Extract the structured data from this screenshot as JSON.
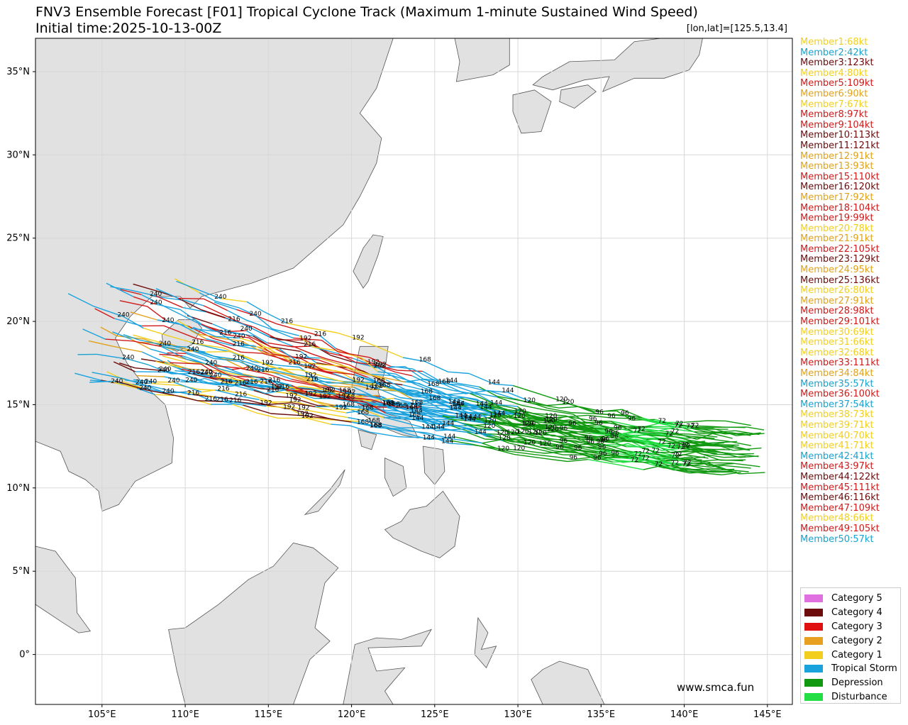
{
  "title": "FNV3 Ensemble Forecast [F01] Tropical Cyclone Track (Maximum 1-minute Sustained Wind Speed)",
  "subtitle": "Initial time:2025-10-13-00Z",
  "point_label": "[lon,lat]=[125.5,13.4]",
  "credit": "www.smca.fun",
  "map": {
    "lon_range": [
      101,
      146.5
    ],
    "lat_range": [
      -3,
      37
    ],
    "lon_ticks": [
      105,
      110,
      115,
      120,
      125,
      130,
      135,
      140,
      145
    ],
    "lat_ticks": [
      0,
      5,
      10,
      15,
      20,
      25,
      30,
      35
    ],
    "lon_tick_labels": [
      "105°E",
      "110°E",
      "115°E",
      "120°E",
      "125°E",
      "130°E",
      "135°E",
      "140°E",
      "145°E"
    ],
    "lat_tick_labels": [
      "0°",
      "5°N",
      "10°N",
      "15°N",
      "20°N",
      "25°N",
      "30°N",
      "35°N"
    ],
    "grid": true,
    "land_color": "#e1e1e1",
    "coast_color": "#555555"
  },
  "members": [
    {
      "label": "Member1:68kt",
      "color": "#f2cf1e"
    },
    {
      "label": "Member2:42kt",
      "color": "#1aa2cf"
    },
    {
      "label": "Member3:123kt",
      "color": "#6b0b0b"
    },
    {
      "label": "Member4:80kt",
      "color": "#f2cf1e"
    },
    {
      "label": "Member5:109kt",
      "color": "#d01a1a"
    },
    {
      "label": "Member6:90kt",
      "color": "#e0a21a"
    },
    {
      "label": "Member7:67kt",
      "color": "#f2cf1e"
    },
    {
      "label": "Member8:97kt",
      "color": "#d01a1a"
    },
    {
      "label": "Member9:104kt",
      "color": "#d01a1a"
    },
    {
      "label": "Member10:113kt",
      "color": "#6b0b0b"
    },
    {
      "label": "Member11:121kt",
      "color": "#6b0b0b"
    },
    {
      "label": "Member12:91kt",
      "color": "#e0a21a"
    },
    {
      "label": "Member13:93kt",
      "color": "#e0a21a"
    },
    {
      "label": "Member15:110kt",
      "color": "#d01a1a"
    },
    {
      "label": "Member16:120kt",
      "color": "#6b0b0b"
    },
    {
      "label": "Member17:92kt",
      "color": "#e0a21a"
    },
    {
      "label": "Member18:104kt",
      "color": "#d01a1a"
    },
    {
      "label": "Member19:99kt",
      "color": "#d01a1a"
    },
    {
      "label": "Member20:78kt",
      "color": "#f2cf1e"
    },
    {
      "label": "Member21:91kt",
      "color": "#e0a21a"
    },
    {
      "label": "Member22:105kt",
      "color": "#d01a1a"
    },
    {
      "label": "Member23:129kt",
      "color": "#6b0b0b"
    },
    {
      "label": "Member24:95kt",
      "color": "#e0a21a"
    },
    {
      "label": "Member25:136kt",
      "color": "#6b0b0b"
    },
    {
      "label": "Member26:80kt",
      "color": "#f2cf1e"
    },
    {
      "label": "Member27:91kt",
      "color": "#e0a21a"
    },
    {
      "label": "Member28:98kt",
      "color": "#d01a1a"
    },
    {
      "label": "Member29:101kt",
      "color": "#d01a1a"
    },
    {
      "label": "Member30:69kt",
      "color": "#f2cf1e"
    },
    {
      "label": "Member31:66kt",
      "color": "#f2cf1e"
    },
    {
      "label": "Member32:68kt",
      "color": "#f2cf1e"
    },
    {
      "label": "Member33:111kt",
      "color": "#d01a1a"
    },
    {
      "label": "Member34:84kt",
      "color": "#e0a21a"
    },
    {
      "label": "Member35:57kt",
      "color": "#1aa2cf"
    },
    {
      "label": "Member36:100kt",
      "color": "#d01a1a"
    },
    {
      "label": "Member37:54kt",
      "color": "#1aa2cf"
    },
    {
      "label": "Member38:73kt",
      "color": "#f2cf1e"
    },
    {
      "label": "Member39:71kt",
      "color": "#f2cf1e"
    },
    {
      "label": "Member40:70kt",
      "color": "#f2cf1e"
    },
    {
      "label": "Member41:71kt",
      "color": "#f2cf1e"
    },
    {
      "label": "Member42:41kt",
      "color": "#1aa2cf"
    },
    {
      "label": "Member43:97kt",
      "color": "#d01a1a"
    },
    {
      "label": "Member44:122kt",
      "color": "#6b0b0b"
    },
    {
      "label": "Member45:111kt",
      "color": "#d01a1a"
    },
    {
      "label": "Member46:116kt",
      "color": "#6b0b0b"
    },
    {
      "label": "Member47:109kt",
      "color": "#d01a1a"
    },
    {
      "label": "Member48:66kt",
      "color": "#f2cf1e"
    },
    {
      "label": "Member49:105kt",
      "color": "#d01a1a"
    },
    {
      "label": "Member50:57kt",
      "color": "#1aa2cf"
    }
  ],
  "legend": [
    {
      "label": "Category 5",
      "color": "#e070e0"
    },
    {
      "label": "Category 4",
      "color": "#6b0b0b"
    },
    {
      "label": "Category 3",
      "color": "#e01010"
    },
    {
      "label": "Category 2",
      "color": "#e8a020"
    },
    {
      "label": "Category 1",
      "color": "#f2cf1e"
    },
    {
      "label": "Tropical Storm",
      "color": "#1aa2dd"
    },
    {
      "label": "Depression",
      "color": "#119911"
    },
    {
      "label": "Disturbance",
      "color": "#22dd44"
    }
  ]
}
